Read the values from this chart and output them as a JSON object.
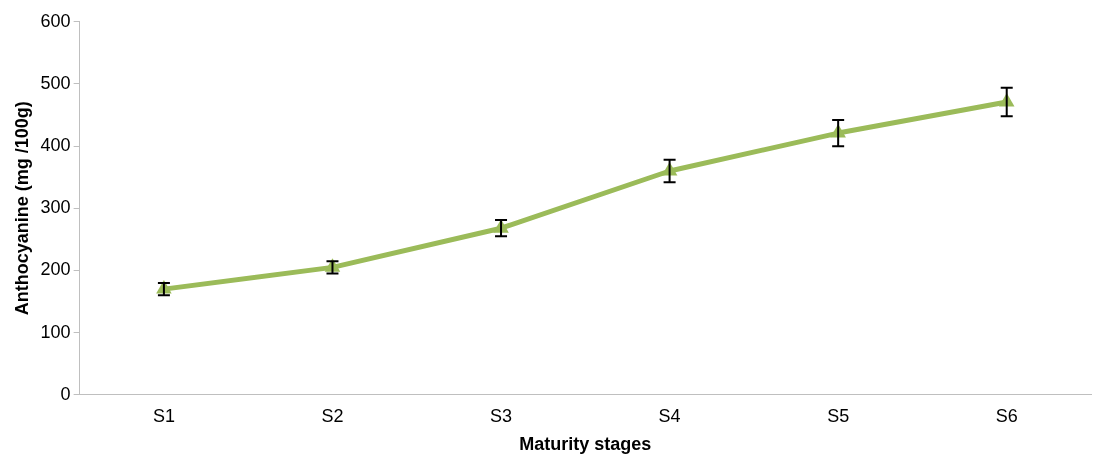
{
  "chart_data": {
    "type": "line",
    "xlabel": "Maturity stages",
    "ylabel": "Anthocyanine (mg /100g)",
    "categories": [
      "S1",
      "S2",
      "S3",
      "S4",
      "S5",
      "S6"
    ],
    "series": [
      {
        "color": "#9bbb59",
        "values": [
          170,
          205,
          268,
          360,
          421,
          471
        ],
        "errors": [
          10,
          10,
          13,
          18,
          21,
          23
        ]
      }
    ],
    "ylim": [
      0,
      600
    ],
    "yticks": [
      0,
      100,
      200,
      300,
      400,
      500,
      600
    ],
    "grid": false,
    "legend": false,
    "marker": "triangle",
    "line_style": "solid"
  }
}
